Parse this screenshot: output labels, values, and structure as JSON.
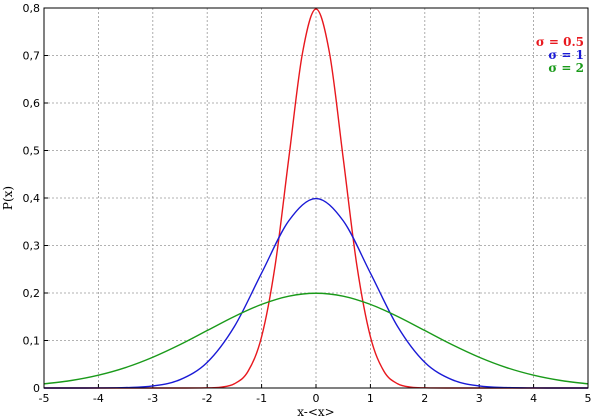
{
  "chart_data": {
    "type": "line",
    "title": "",
    "xlabel": "x-<x>",
    "ylabel": "P(x)",
    "xlim": [
      -5,
      5
    ],
    "ylim": [
      0,
      0.8
    ],
    "x_ticks": [
      -5,
      -4,
      -3,
      -2,
      -1,
      0,
      1,
      2,
      3,
      4,
      5
    ],
    "y_ticks": [
      0,
      0.1,
      0.2,
      0.3,
      0.4,
      0.5,
      0.6,
      0.7,
      0.8
    ],
    "x_tick_labels": [
      "-5",
      "-4",
      "-3",
      "-2",
      "-1",
      "0",
      "1",
      "2",
      "3",
      "4",
      "5"
    ],
    "y_tick_labels": [
      "0",
      "0,1",
      "0,2",
      "0,3",
      "0,4",
      "0,5",
      "0,6",
      "0,7",
      "0,8"
    ],
    "grid": true,
    "legend_position": "top-right",
    "series": [
      {
        "name": "σ = 0.5",
        "color": "#e8181e",
        "x": [
          -5,
          -4.5,
          -4,
          -3.5,
          -3,
          -2.5,
          -2,
          -1.75,
          -1.5,
          -1.25,
          -1,
          -0.75,
          -0.5,
          -0.25,
          0,
          0.25,
          0.5,
          0.75,
          1,
          1.25,
          1.5,
          1.75,
          2,
          2.5,
          3,
          3.5,
          4,
          4.5,
          5
        ],
        "y": [
          0,
          0,
          0,
          0,
          0,
          0,
          0.0003,
          0.0017,
          0.0089,
          0.035,
          0.108,
          0.259,
          0.4839,
          0.7041,
          0.7979,
          0.7041,
          0.4839,
          0.259,
          0.108,
          0.035,
          0.0089,
          0.0017,
          0.0003,
          0,
          0,
          0,
          0,
          0,
          0
        ]
      },
      {
        "name": "σ = 1",
        "color": "#1a1ad6",
        "x": [
          -5,
          -4.5,
          -4,
          -3.5,
          -3,
          -2.5,
          -2,
          -1.5,
          -1,
          -0.5,
          0,
          0.5,
          1,
          1.5,
          2,
          2.5,
          3,
          3.5,
          4,
          4.5,
          5
        ],
        "y": [
          0,
          0,
          0.0001,
          0.0009,
          0.0044,
          0.0175,
          0.054,
          0.1295,
          0.242,
          0.3521,
          0.3989,
          0.3521,
          0.242,
          0.1295,
          0.054,
          0.0175,
          0.0044,
          0.0009,
          0.0001,
          0,
          0
        ]
      },
      {
        "name": "σ = 2",
        "color": "#1a9a1a",
        "x": [
          -5,
          -4.5,
          -4,
          -3.5,
          -3,
          -2.5,
          -2,
          -1.5,
          -1,
          -0.5,
          0,
          0.5,
          1,
          1.5,
          2,
          2.5,
          3,
          3.5,
          4,
          4.5,
          5
        ],
        "y": [
          0.0088,
          0.0158,
          0.027,
          0.0431,
          0.0648,
          0.0913,
          0.121,
          0.1506,
          0.176,
          0.1933,
          0.1995,
          0.1933,
          0.176,
          0.1506,
          0.121,
          0.0913,
          0.0648,
          0.0431,
          0.027,
          0.0158,
          0.0088
        ]
      }
    ]
  }
}
